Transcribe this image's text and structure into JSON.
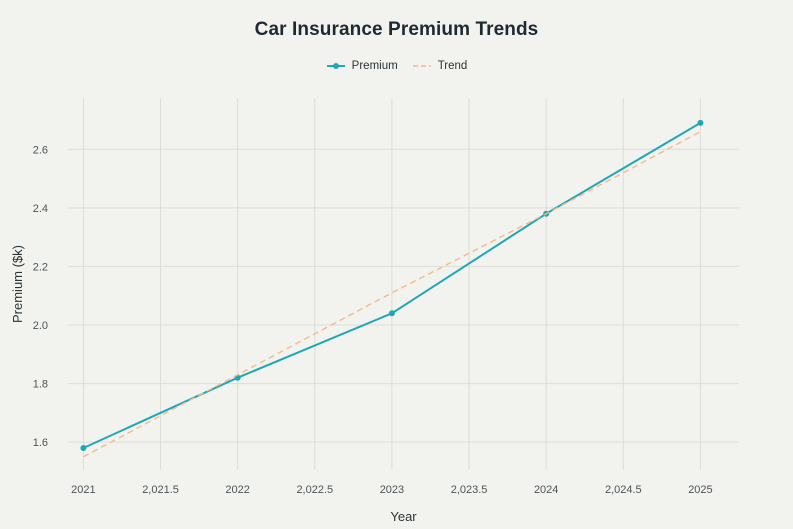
{
  "chart_data": {
    "type": "line",
    "title": "Car Insurance Premium Trends",
    "xlabel": "Year",
    "ylabel": "Premium ($k)",
    "x": [
      2021,
      2022,
      2023,
      2024,
      2025
    ],
    "series": [
      {
        "name": "Premium",
        "style": "solid-with-markers",
        "color": "#1fa7b5",
        "values": [
          1.58,
          1.82,
          2.04,
          2.38,
          2.69
        ]
      },
      {
        "name": "Trend",
        "style": "dashed",
        "color": "#f5b98c",
        "values": [
          1.55,
          1.83,
          2.11,
          2.38,
          2.66
        ]
      }
    ],
    "xlim": [
      2020.9,
      2025.25
    ],
    "ylim": [
      1.505,
      2.775
    ],
    "x_ticks": [
      2021,
      2021.5,
      2022,
      2022.5,
      2023,
      2023.5,
      2024,
      2024.5,
      2025
    ],
    "x_tick_labels": [
      "2021",
      "2,021.5",
      "2022",
      "2,022.5",
      "2023",
      "2,023.5",
      "2024",
      "2,024.5",
      "2025"
    ],
    "y_ticks": [
      1.6,
      1.8,
      2.0,
      2.2,
      2.4,
      2.6
    ],
    "y_tick_labels": [
      "1.6",
      "1.8",
      "2.0",
      "2.2",
      "2.4",
      "2.6"
    ],
    "grid": true,
    "legend_position": "top-center",
    "colors": {
      "background": "#f2f3ee",
      "grid": "#dcddd6",
      "text": "#2c3438"
    }
  }
}
